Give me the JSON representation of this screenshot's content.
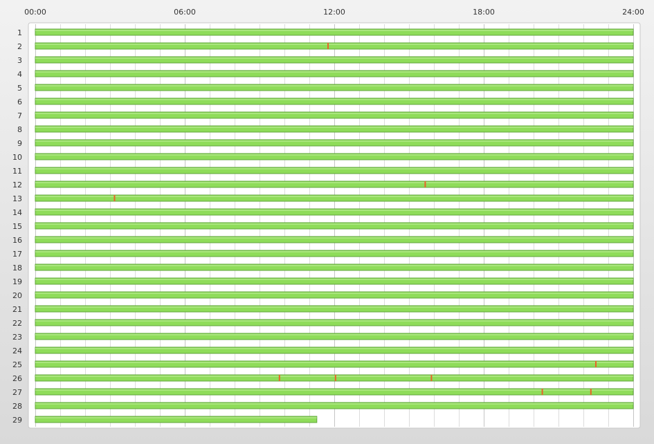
{
  "chart_data": {
    "type": "timeline",
    "title": "",
    "x_ticks": [
      "00:00",
      "06:00",
      "12:00",
      "18:00",
      "24:00"
    ],
    "x_range_hours": [
      0,
      24
    ],
    "grid": true,
    "colors": {
      "ok": "#8fdc5a",
      "ok_edge": "#5fa53a",
      "event": "#e8632a"
    },
    "rows": [
      {
        "label": "1",
        "end": 24,
        "events": []
      },
      {
        "label": "2",
        "end": 24,
        "events": [
          11.75
        ]
      },
      {
        "label": "3",
        "end": 24,
        "events": []
      },
      {
        "label": "4",
        "end": 24,
        "events": []
      },
      {
        "label": "5",
        "end": 24,
        "events": []
      },
      {
        "label": "6",
        "end": 24,
        "events": []
      },
      {
        "label": "7",
        "end": 24,
        "events": []
      },
      {
        "label": "8",
        "end": 24,
        "events": []
      },
      {
        "label": "9",
        "end": 24,
        "events": []
      },
      {
        "label": "10",
        "end": 24,
        "events": []
      },
      {
        "label": "11",
        "end": 24,
        "events": []
      },
      {
        "label": "12",
        "end": 24,
        "events": [
          15.65
        ]
      },
      {
        "label": "13",
        "end": 24,
        "events": [
          3.18
        ]
      },
      {
        "label": "14",
        "end": 24,
        "events": []
      },
      {
        "label": "15",
        "end": 24,
        "events": []
      },
      {
        "label": "16",
        "end": 24,
        "events": []
      },
      {
        "label": "17",
        "end": 24,
        "events": []
      },
      {
        "label": "18",
        "end": 24,
        "events": []
      },
      {
        "label": "19",
        "end": 24,
        "events": []
      },
      {
        "label": "20",
        "end": 24,
        "events": []
      },
      {
        "label": "21",
        "end": 24,
        "events": []
      },
      {
        "label": "22",
        "end": 24,
        "events": []
      },
      {
        "label": "23",
        "end": 24,
        "events": []
      },
      {
        "label": "24",
        "end": 24,
        "events": []
      },
      {
        "label": "25",
        "end": 24,
        "events": [
          22.5
        ]
      },
      {
        "label": "26",
        "end": 24,
        "events": [
          9.8,
          12.05,
          15.9
        ]
      },
      {
        "label": "27",
        "end": 24,
        "events": [
          20.35,
          22.3
        ]
      },
      {
        "label": "28",
        "end": 24,
        "events": []
      },
      {
        "label": "29",
        "end": 11.3,
        "events": []
      }
    ]
  }
}
